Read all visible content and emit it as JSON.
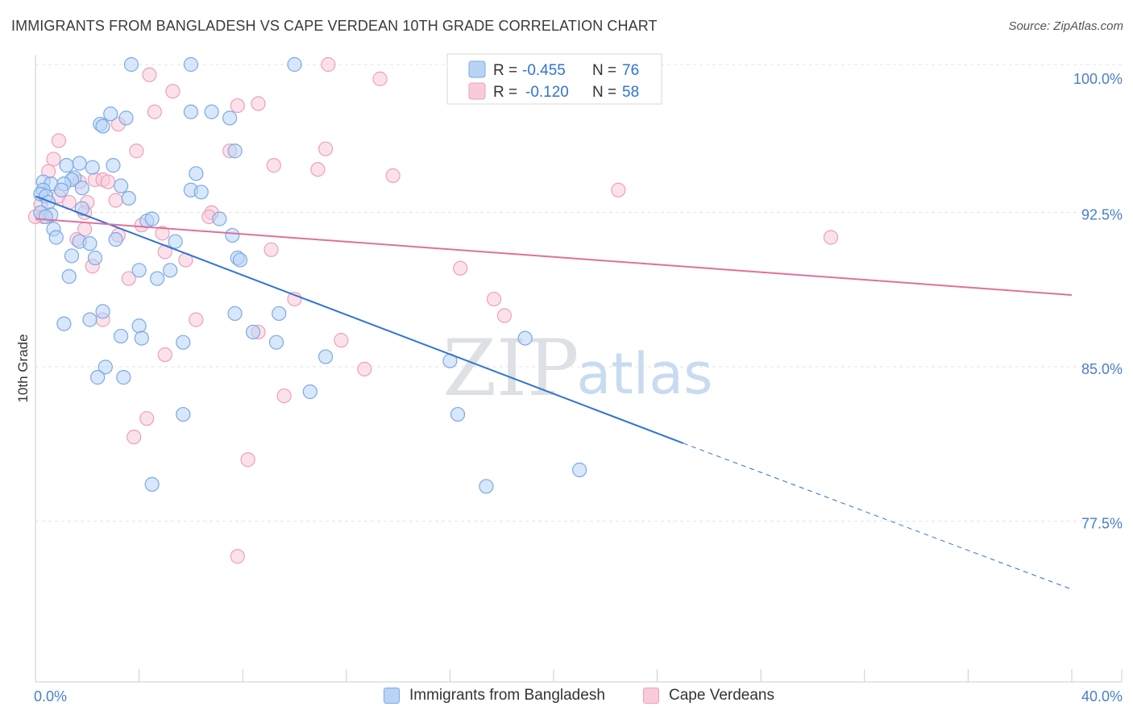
{
  "header": {
    "title": "IMMIGRANTS FROM BANGLADESH VS CAPE VERDEAN 10TH GRADE CORRELATION CHART",
    "source": "Source: ZipAtlas.com"
  },
  "watermark": {
    "zip": "ZIP",
    "atlas": "atlas"
  },
  "colors": {
    "blue": "#7aaae6",
    "blue_fill": "#b8d3f5",
    "blue_line": "#2f74d4",
    "pink": "#ef9fba",
    "pink_fill": "#f8cbd9",
    "pink_line": "#e0709a",
    "tick_label": "#4a7ec8",
    "grid": "#e3e3e3"
  },
  "legend_top": {
    "rows": [
      {
        "r_label": "R =",
        "r_value": "-0.455",
        "n_label": "N =",
        "n_value": "76"
      },
      {
        "r_label": "R =",
        "r_value": "-0.120",
        "n_label": "N =",
        "n_value": "58"
      }
    ]
  },
  "legend_bottom": {
    "items": [
      {
        "label": "Immigrants from Bangladesh"
      },
      {
        "label": "Cape Verdeans"
      }
    ]
  },
  "chart_data": {
    "type": "scatter",
    "title": "IMMIGRANTS FROM BANGLADESH VS CAPE VERDEAN 10TH GRADE CORRELATION CHART",
    "xlabel": "",
    "ylabel": "10th Grade",
    "xlim": [
      0,
      40
    ],
    "ylim": [
      70.5,
      101
    ],
    "x_tick_labels": [
      "0.0%",
      "40.0%"
    ],
    "y_ticks": [
      77.5,
      85.0,
      92.5,
      100.0
    ],
    "y_tick_labels": [
      "77.5%",
      "85.0%",
      "92.5%",
      "100.0%"
    ],
    "grid": true,
    "legend_position": "top-center",
    "series": [
      {
        "name": "Immigrants from Bangladesh",
        "color": "#7aaae6",
        "r": -0.455,
        "n": 76,
        "trend": {
          "x0": 0,
          "y0": 93.6,
          "x1": 25.0,
          "y1": 81.6,
          "dashed_to_x": 40,
          "dashed_to_y": 74.5
        },
        "points": [
          [
            3.7,
            100.0
          ],
          [
            6.0,
            100.0
          ],
          [
            10.0,
            100.0
          ],
          [
            2.9,
            97.6
          ],
          [
            3.5,
            97.4
          ],
          [
            2.5,
            97.1
          ],
          [
            2.6,
            97.0
          ],
          [
            6.0,
            97.7
          ],
          [
            6.8,
            97.7
          ],
          [
            7.5,
            97.4
          ],
          [
            7.7,
            95.8
          ],
          [
            1.7,
            95.2
          ],
          [
            1.2,
            95.1
          ],
          [
            2.2,
            95.0
          ],
          [
            3.0,
            95.1
          ],
          [
            0.3,
            94.3
          ],
          [
            0.6,
            94.2
          ],
          [
            1.5,
            94.5
          ],
          [
            1.4,
            94.4
          ],
          [
            1.8,
            94.0
          ],
          [
            1.1,
            94.2
          ],
          [
            3.3,
            94.1
          ],
          [
            6.2,
            94.7
          ],
          [
            0.3,
            93.9
          ],
          [
            0.2,
            93.7
          ],
          [
            0.4,
            93.6
          ],
          [
            0.5,
            93.3
          ],
          [
            1.0,
            93.9
          ],
          [
            3.6,
            93.5
          ],
          [
            6.0,
            93.9
          ],
          [
            6.4,
            93.8
          ],
          [
            0.2,
            92.8
          ],
          [
            0.6,
            92.7
          ],
          [
            0.4,
            92.6
          ],
          [
            1.8,
            93.0
          ],
          [
            4.3,
            92.4
          ],
          [
            4.5,
            92.5
          ],
          [
            7.1,
            92.5
          ],
          [
            0.7,
            92.0
          ],
          [
            0.8,
            91.6
          ],
          [
            1.7,
            91.4
          ],
          [
            2.1,
            91.3
          ],
          [
            3.1,
            91.5
          ],
          [
            5.4,
            91.4
          ],
          [
            7.6,
            91.7
          ],
          [
            1.4,
            90.7
          ],
          [
            2.3,
            90.6
          ],
          [
            7.8,
            90.6
          ],
          [
            7.9,
            90.5
          ],
          [
            1.3,
            89.7
          ],
          [
            4.0,
            90.0
          ],
          [
            4.7,
            89.6
          ],
          [
            5.2,
            90.0
          ],
          [
            2.6,
            88.0
          ],
          [
            2.1,
            87.6
          ],
          [
            7.7,
            87.9
          ],
          [
            9.4,
            87.9
          ],
          [
            1.1,
            87.4
          ],
          [
            4.0,
            87.3
          ],
          [
            8.4,
            87.0
          ],
          [
            3.3,
            86.8
          ],
          [
            4.1,
            86.7
          ],
          [
            5.7,
            86.5
          ],
          [
            9.3,
            86.5
          ],
          [
            18.9,
            86.7
          ],
          [
            2.7,
            85.3
          ],
          [
            11.2,
            85.8
          ],
          [
            16.0,
            85.6
          ],
          [
            2.4,
            84.8
          ],
          [
            3.4,
            84.8
          ],
          [
            10.6,
            84.1
          ],
          [
            5.7,
            83.0
          ],
          [
            16.3,
            83.0
          ],
          [
            4.5,
            79.6
          ],
          [
            17.4,
            79.5
          ],
          [
            21.0,
            80.3
          ]
        ]
      },
      {
        "name": "Cape Verdeans",
        "color": "#ef9fba",
        "r": -0.12,
        "n": 58,
        "trend": {
          "x0": 0,
          "y0": 92.5,
          "x1": 40,
          "y1": 88.8
        },
        "points": [
          [
            11.3,
            100.0
          ],
          [
            4.4,
            99.5
          ],
          [
            13.3,
            99.3
          ],
          [
            5.3,
            98.7
          ],
          [
            7.8,
            98.0
          ],
          [
            8.6,
            98.1
          ],
          [
            4.6,
            97.7
          ],
          [
            3.2,
            97.1
          ],
          [
            0.9,
            96.3
          ],
          [
            3.9,
            95.8
          ],
          [
            7.5,
            95.8
          ],
          [
            11.2,
            95.9
          ],
          [
            0.7,
            95.4
          ],
          [
            9.2,
            95.1
          ],
          [
            10.9,
            94.9
          ],
          [
            13.8,
            94.6
          ],
          [
            0.5,
            94.8
          ],
          [
            2.3,
            94.4
          ],
          [
            2.6,
            94.4
          ],
          [
            1.7,
            94.3
          ],
          [
            2.8,
            94.3
          ],
          [
            22.5,
            93.9
          ],
          [
            0.9,
            93.6
          ],
          [
            2.0,
            93.3
          ],
          [
            1.3,
            93.3
          ],
          [
            3.1,
            93.4
          ],
          [
            0.2,
            93.2
          ],
          [
            0.0,
            92.6
          ],
          [
            0.3,
            92.6
          ],
          [
            6.8,
            92.8
          ],
          [
            6.7,
            92.6
          ],
          [
            1.9,
            92.8
          ],
          [
            4.1,
            92.2
          ],
          [
            3.2,
            91.7
          ],
          [
            4.9,
            91.8
          ],
          [
            1.6,
            91.5
          ],
          [
            1.9,
            92.0
          ],
          [
            30.7,
            91.6
          ],
          [
            5.0,
            90.9
          ],
          [
            9.1,
            91.0
          ],
          [
            5.8,
            90.5
          ],
          [
            2.2,
            90.2
          ],
          [
            16.4,
            90.1
          ],
          [
            3.6,
            89.6
          ],
          [
            10.0,
            88.6
          ],
          [
            17.7,
            88.6
          ],
          [
            18.1,
            87.8
          ],
          [
            2.6,
            87.6
          ],
          [
            6.2,
            87.6
          ],
          [
            8.6,
            87.0
          ],
          [
            11.8,
            86.6
          ],
          [
            5.0,
            85.9
          ],
          [
            12.7,
            85.2
          ],
          [
            9.6,
            83.9
          ],
          [
            4.3,
            82.8
          ],
          [
            3.8,
            81.9
          ],
          [
            8.2,
            80.8
          ],
          [
            7.8,
            76.1
          ]
        ]
      }
    ]
  }
}
